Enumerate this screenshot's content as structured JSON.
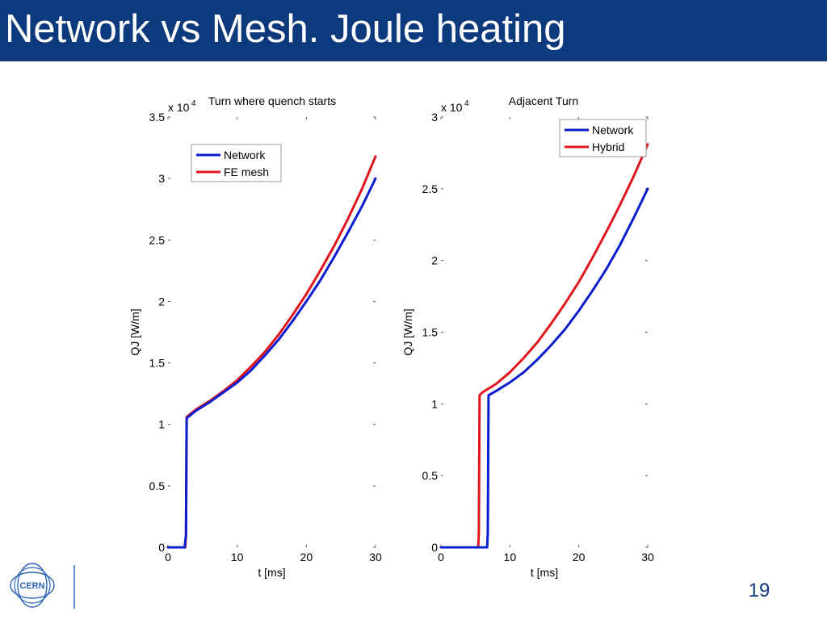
{
  "slide": {
    "title": "Network vs Mesh. Joule heating",
    "page_number": "19",
    "logo_text": "CERN",
    "colors": {
      "title_bar": "#0d3a7d",
      "network": "#0a1ed0",
      "other": "#e0161c"
    }
  },
  "chart_data": [
    {
      "type": "line",
      "title": "Turn where quench starts",
      "xlabel": "t [ms]",
      "ylabel": "QJ [W/m]",
      "exponent_label": "x 10",
      "exponent_power": "4",
      "xlim": [
        0,
        30
      ],
      "ylim": [
        0,
        3.5
      ],
      "xticks": [
        0,
        10,
        20,
        30
      ],
      "xtick_labels": [
        "0",
        "10",
        "20",
        "30"
      ],
      "yticks": [
        0,
        0.5,
        1,
        1.5,
        2,
        2.5,
        3,
        3.5
      ],
      "ytick_labels": [
        "0",
        "0.5",
        "1",
        "1.5",
        "2",
        "2.5",
        "3",
        "3.5"
      ],
      "grid": false,
      "legend_position": "top-left",
      "series": [
        {
          "name": "Network",
          "color": "#0a1ed0",
          "x": [
            0,
            2.4,
            2.6,
            2.7,
            4,
            6,
            8,
            10,
            12,
            14,
            16,
            18,
            20,
            22,
            24,
            26,
            28,
            30
          ],
          "y": [
            0,
            0,
            0.1,
            1.05,
            1.11,
            1.18,
            1.26,
            1.34,
            1.44,
            1.56,
            1.69,
            1.84,
            2.0,
            2.17,
            2.36,
            2.56,
            2.77,
            3.0
          ]
        },
        {
          "name": "FE mesh",
          "color": "#e0161c",
          "x": [
            0,
            2.5,
            2.6,
            2.7,
            4,
            6,
            8,
            10,
            12,
            14,
            16,
            18,
            20,
            22,
            24,
            26,
            28,
            30
          ],
          "y": [
            0,
            0,
            0.1,
            1.06,
            1.12,
            1.19,
            1.27,
            1.36,
            1.47,
            1.59,
            1.73,
            1.89,
            2.06,
            2.25,
            2.45,
            2.67,
            2.91,
            3.18
          ]
        }
      ]
    },
    {
      "type": "line",
      "title": "Adjacent Turn",
      "xlabel": "t [ms]",
      "ylabel": "QJ [W/m]",
      "exponent_label": "x 10",
      "exponent_power": "4",
      "xlim": [
        0,
        30
      ],
      "ylim": [
        0,
        3
      ],
      "xticks": [
        0,
        10,
        20,
        30
      ],
      "xtick_labels": [
        "0",
        "10",
        "20",
        "30"
      ],
      "yticks": [
        0,
        0.5,
        1,
        1.5,
        2,
        2.5,
        3
      ],
      "ytick_labels": [
        "0",
        "0.5",
        "1",
        "1.5",
        "2",
        "2.5",
        "3"
      ],
      "grid": false,
      "legend_position": "top-right",
      "series": [
        {
          "name": "Network",
          "color": "#0a1ed0",
          "x": [
            0,
            6.7,
            6.8,
            6.9,
            8,
            10,
            12,
            14,
            16,
            18,
            20,
            22,
            24,
            26,
            28,
            30
          ],
          "y": [
            0,
            0,
            0.1,
            1.06,
            1.09,
            1.15,
            1.22,
            1.31,
            1.41,
            1.52,
            1.65,
            1.79,
            1.94,
            2.11,
            2.3,
            2.5
          ]
        },
        {
          "name": "Hybrid",
          "color": "#e0161c",
          "x": [
            0,
            5.4,
            5.5,
            5.6,
            6,
            8,
            10,
            12,
            14,
            16,
            18,
            20,
            22,
            24,
            26,
            28,
            30
          ],
          "y": [
            0,
            0,
            0.1,
            1.06,
            1.08,
            1.14,
            1.22,
            1.32,
            1.43,
            1.56,
            1.7,
            1.85,
            2.02,
            2.2,
            2.39,
            2.59,
            2.81
          ]
        }
      ]
    }
  ]
}
